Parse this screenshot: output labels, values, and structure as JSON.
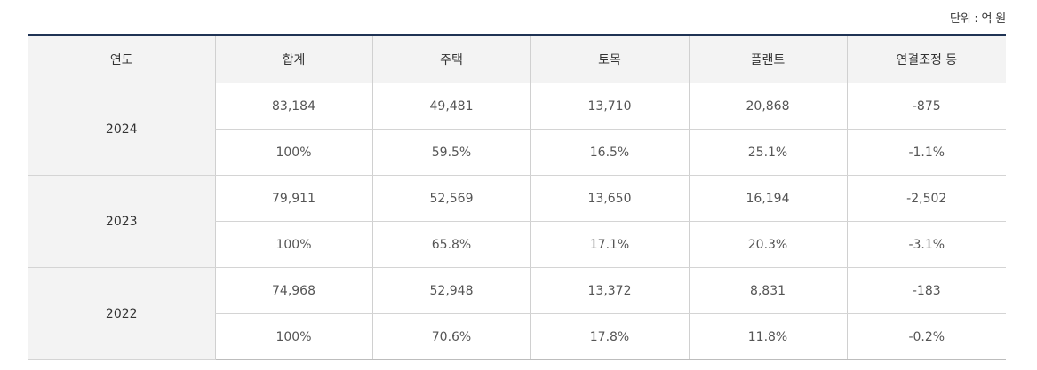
{
  "unit_note": "단위 : 억 원",
  "table": {
    "headers": [
      "연도",
      "합계",
      "주택",
      "토목",
      "플랜트",
      "연결조정 등"
    ],
    "years": [
      {
        "year": "2024",
        "amounts": [
          "83,184",
          "49,481",
          "13,710",
          "20,868",
          "-875"
        ],
        "ratios": [
          "100%",
          "59.5%",
          "16.5%",
          "25.1%",
          "-1.1%"
        ]
      },
      {
        "year": "2023",
        "amounts": [
          "79,911",
          "52,569",
          "13,650",
          "16,194",
          "-2,502"
        ],
        "ratios": [
          "100%",
          "65.8%",
          "17.1%",
          "20.3%",
          "-3.1%"
        ]
      },
      {
        "year": "2022",
        "amounts": [
          "74,968",
          "52,948",
          "13,372",
          "8,831",
          "-183"
        ],
        "ratios": [
          "100%",
          "70.6%",
          "17.8%",
          "11.8%",
          "-0.2%"
        ]
      }
    ]
  }
}
